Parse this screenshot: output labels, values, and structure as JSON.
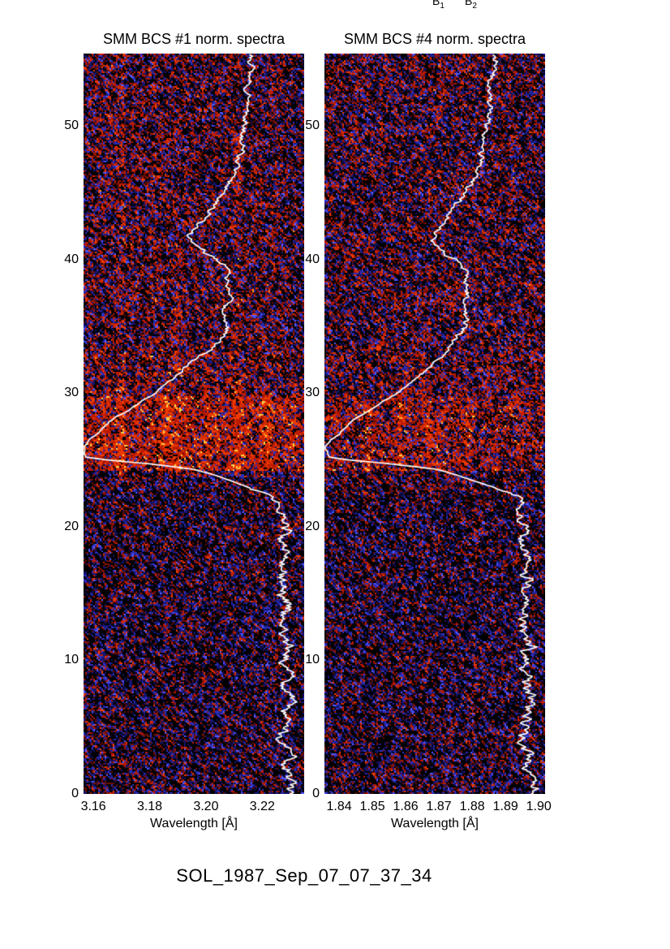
{
  "figure": {
    "caption": "SOL_1987_Sep_07_07_37_34",
    "background": "#ffffff",
    "text_color": "#000000"
  },
  "header_markers": [
    {
      "label": "B",
      "sub": "1"
    },
    {
      "label": "B",
      "sub": "2"
    }
  ],
  "palette": {
    "black": "#000000",
    "dark_blue": "#15156e",
    "blue": "#2d2fc0",
    "bright_blue": "#5558ff",
    "dark_red": "#6e0e00",
    "red": "#bb1a00",
    "red_orange": "#ee3c00",
    "orange": "#ff9626",
    "yellow": "#ffd24d",
    "curve": "#ffffff"
  },
  "chart_data": [
    {
      "type": "heatmap",
      "title": "SMM BCS #1 norm. spectra",
      "xlabel": "Wavelength [Å]",
      "ylabel": "",
      "xlim": [
        3.1565,
        3.2349
      ],
      "ylim": [
        0,
        55.4
      ],
      "xticks": [
        3.16,
        3.18,
        3.2,
        3.22
      ],
      "xtick_labels": [
        "3.16",
        "3.18",
        "3.20",
        "3.22"
      ],
      "yticks": [
        0,
        10,
        20,
        30,
        40,
        50
      ],
      "ytick_labels": [
        "0",
        "10",
        "20",
        "30",
        "40",
        "50"
      ],
      "grid": false,
      "seed": 101,
      "right_edge_dim": true,
      "regions": [
        {
          "t0": 0,
          "t1": 22.5,
          "base": 0.28
        },
        {
          "t0": 22.5,
          "t1": 24.2,
          "base": 0.36
        },
        {
          "t0": 24.2,
          "t1": 29.8,
          "base": 0.78
        },
        {
          "t0": 29.8,
          "t1": 33,
          "base": 0.54
        },
        {
          "t0": 33,
          "t1": 55.4,
          "base": 0.46
        }
      ],
      "stripes": [
        {
          "f": 0.17,
          "w": 0.02,
          "amp": 0.5,
          "t0": 23.5,
          "t1": 30.5
        },
        {
          "f": 0.17,
          "w": 0.018,
          "amp": 0.22,
          "t0": 30.5,
          "t1": 53.0
        },
        {
          "f": 0.315,
          "w": 0.015,
          "amp": 0.14,
          "t0": 30.5,
          "t1": 48.0
        },
        {
          "f": 0.4,
          "w": 0.045,
          "amp": 0.28,
          "t0": 23.8,
          "t1": 30.2
        },
        {
          "f": 0.42,
          "w": 0.04,
          "amp": 0.1,
          "t0": 30.2,
          "t1": 44.0
        },
        {
          "f": 0.56,
          "w": 0.02,
          "amp": 0.12,
          "t0": 24.0,
          "t1": 30.0
        },
        {
          "f": 0.7,
          "w": 0.022,
          "amp": 0.38,
          "t0": 23.8,
          "t1": 30.3
        },
        {
          "f": 0.7,
          "w": 0.02,
          "amp": 0.15,
          "t0": 30.3,
          "t1": 50.0
        },
        {
          "f": 0.825,
          "w": 0.025,
          "amp": 0.25,
          "t0": 23.8,
          "t1": 30.0
        }
      ],
      "lightcurve": {
        "color": "#ffffff",
        "points": [
          [
            0,
            0.93
          ],
          [
            1,
            0.96
          ],
          [
            2,
            0.9
          ],
          [
            3,
            0.94
          ],
          [
            4,
            0.89
          ],
          [
            5,
            0.93
          ],
          [
            6,
            0.9
          ],
          [
            7,
            0.95
          ],
          [
            8,
            0.91
          ],
          [
            9,
            0.93
          ],
          [
            10,
            0.9
          ],
          [
            11,
            0.94
          ],
          [
            12,
            0.91
          ],
          [
            13,
            0.89
          ],
          [
            14,
            0.93
          ],
          [
            15,
            0.9
          ],
          [
            16,
            0.92
          ],
          [
            17,
            0.89
          ],
          [
            18,
            0.92
          ],
          [
            19,
            0.9
          ],
          [
            20,
            0.91
          ],
          [
            21,
            0.88
          ],
          [
            21.8,
            0.9
          ],
          [
            22.3,
            0.85
          ],
          [
            23,
            0.74
          ],
          [
            23.7,
            0.62
          ],
          [
            24.3,
            0.5
          ],
          [
            24.7,
            0.3
          ],
          [
            25,
            0.1
          ],
          [
            25.2,
            0.01
          ],
          [
            26,
            0.0
          ],
          [
            26.5,
            0.03
          ],
          [
            27,
            0.07
          ],
          [
            28,
            0.13
          ],
          [
            28.5,
            0.18
          ],
          [
            29.2,
            0.25
          ],
          [
            30,
            0.32
          ],
          [
            31,
            0.4
          ],
          [
            32.3,
            0.49
          ],
          [
            33,
            0.55
          ],
          [
            34,
            0.63
          ],
          [
            35,
            0.65
          ],
          [
            36,
            0.64
          ],
          [
            37,
            0.66
          ],
          [
            38,
            0.64
          ],
          [
            39,
            0.65
          ],
          [
            39.6,
            0.64
          ],
          [
            40.5,
            0.55
          ],
          [
            41.3,
            0.5
          ],
          [
            41.8,
            0.49
          ],
          [
            42.5,
            0.52
          ],
          [
            43.8,
            0.58
          ],
          [
            45,
            0.63
          ],
          [
            46,
            0.67
          ],
          [
            47,
            0.7
          ],
          [
            48,
            0.71
          ],
          [
            49,
            0.72
          ],
          [
            50,
            0.73
          ],
          [
            51,
            0.74
          ],
          [
            52,
            0.75
          ],
          [
            53,
            0.74
          ],
          [
            54,
            0.76
          ],
          [
            55.4,
            0.76
          ]
        ],
        "jitter": [
          [
            0,
            21,
            6.5
          ],
          [
            21,
            23,
            4
          ],
          [
            23,
            26.5,
            1.2
          ],
          [
            26.5,
            31,
            1.5
          ],
          [
            31,
            34,
            2.6
          ],
          [
            34,
            55.4,
            3.6
          ]
        ]
      }
    },
    {
      "type": "heatmap",
      "title": "SMM BCS #4 norm. spectra",
      "xlabel": "Wavelength [Å]",
      "ylabel": "",
      "xlim": [
        1.8356,
        1.9019
      ],
      "ylim": [
        0,
        55.4
      ],
      "xticks": [
        1.84,
        1.85,
        1.86,
        1.87,
        1.88,
        1.89,
        1.9
      ],
      "xtick_labels": [
        "1.84",
        "1.85",
        "1.86",
        "1.87",
        "1.88",
        "1.89",
        "1.90"
      ],
      "yticks": [
        0,
        10,
        20,
        30,
        40,
        50
      ],
      "ytick_labels": [
        "0",
        "10",
        "20",
        "30",
        "40",
        "50"
      ],
      "grid": false,
      "seed": 202,
      "right_edge_dim": false,
      "regions": [
        {
          "t0": 0,
          "t1": 22.5,
          "base": 0.28
        },
        {
          "t0": 22.5,
          "t1": 24.2,
          "base": 0.34
        },
        {
          "t0": 24.2,
          "t1": 29.8,
          "base": 0.64
        },
        {
          "t0": 29.8,
          "t1": 33,
          "base": 0.5
        },
        {
          "t0": 33,
          "t1": 55.4,
          "base": 0.43
        }
      ],
      "stripes": [
        {
          "f": 0.2,
          "w": 0.016,
          "amp": 0.3,
          "t0": 24.0,
          "t1": 29.5
        },
        {
          "f": 0.345,
          "w": 0.02,
          "amp": 0.28,
          "t0": 24.0,
          "t1": 30.0
        },
        {
          "f": 0.475,
          "w": 0.018,
          "amp": 0.26,
          "t0": 24.0,
          "t1": 29.5
        },
        {
          "f": 0.52,
          "w": 0.02,
          "amp": 0.15,
          "t0": 24.0,
          "t1": 29.0
        },
        {
          "f": 0.645,
          "w": 0.03,
          "amp": 0.18,
          "t0": 24.2,
          "t1": 29.0
        },
        {
          "f": 0.25,
          "w": 0.02,
          "amp": 0.08,
          "t0": 30.0,
          "t1": 40.0
        }
      ],
      "lightcurve": {
        "color": "#ffffff",
        "points": [
          [
            0,
            0.93
          ],
          [
            1,
            0.96
          ],
          [
            2,
            0.9
          ],
          [
            3,
            0.94
          ],
          [
            4,
            0.89
          ],
          [
            5,
            0.93
          ],
          [
            6,
            0.9
          ],
          [
            7,
            0.95
          ],
          [
            8,
            0.91
          ],
          [
            9,
            0.93
          ],
          [
            10,
            0.9
          ],
          [
            11,
            0.94
          ],
          [
            12,
            0.91
          ],
          [
            13,
            0.89
          ],
          [
            14,
            0.93
          ],
          [
            15,
            0.9
          ],
          [
            16,
            0.92
          ],
          [
            17,
            0.89
          ],
          [
            18,
            0.92
          ],
          [
            19,
            0.9
          ],
          [
            20,
            0.91
          ],
          [
            21,
            0.88
          ],
          [
            21.8,
            0.9
          ],
          [
            22.3,
            0.87
          ],
          [
            23,
            0.76
          ],
          [
            23.7,
            0.63
          ],
          [
            24.3,
            0.51
          ],
          [
            24.7,
            0.3
          ],
          [
            25,
            0.1
          ],
          [
            25.2,
            0.02
          ],
          [
            26,
            0.0
          ],
          [
            26.5,
            0.03
          ],
          [
            27,
            0.07
          ],
          [
            28,
            0.13
          ],
          [
            28.5,
            0.18
          ],
          [
            29.2,
            0.25
          ],
          [
            30,
            0.33
          ],
          [
            31,
            0.41
          ],
          [
            32.3,
            0.5
          ],
          [
            33,
            0.55
          ],
          [
            34,
            0.59
          ],
          [
            35,
            0.64
          ],
          [
            36,
            0.64
          ],
          [
            37,
            0.65
          ],
          [
            38,
            0.64
          ],
          [
            39,
            0.64
          ],
          [
            39.6,
            0.63
          ],
          [
            40.5,
            0.54
          ],
          [
            41.3,
            0.5
          ],
          [
            41.8,
            0.49
          ],
          [
            42.5,
            0.53
          ],
          [
            43.8,
            0.59
          ],
          [
            45,
            0.64
          ],
          [
            46,
            0.68
          ],
          [
            47,
            0.7
          ],
          [
            48,
            0.71
          ],
          [
            49,
            0.73
          ],
          [
            50,
            0.74
          ],
          [
            51,
            0.75
          ],
          [
            52,
            0.76
          ],
          [
            53,
            0.75
          ],
          [
            54,
            0.77
          ],
          [
            55.4,
            0.77
          ]
        ],
        "jitter": [
          [
            0,
            21,
            6.5
          ],
          [
            21,
            23,
            4
          ],
          [
            23,
            26.5,
            1.2
          ],
          [
            26.5,
            31,
            1.5
          ],
          [
            31,
            34,
            2.6
          ],
          [
            34,
            55.4,
            3.6
          ]
        ]
      }
    }
  ]
}
